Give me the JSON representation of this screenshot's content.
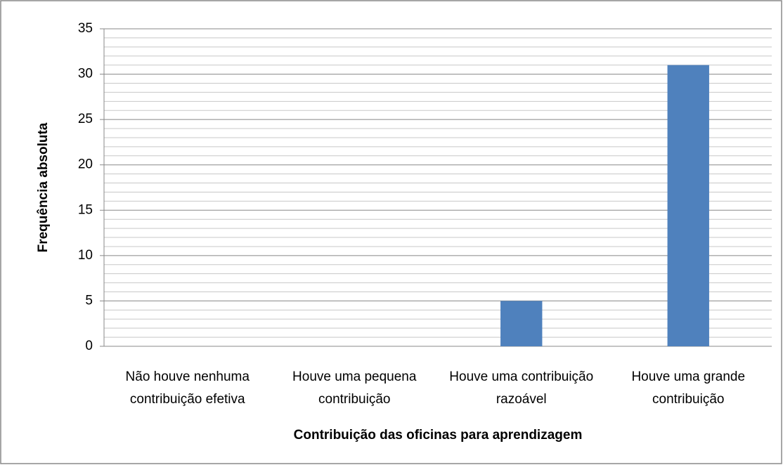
{
  "chart_data": {
    "type": "bar",
    "x_label": "Contribuição das oficinas para aprendizagem",
    "y_label": "Frequência absoluta",
    "categories": [
      "Não houve nenhuma contribuição efetiva",
      "Houve uma pequena contribuição",
      "Houve uma contribuição razoável",
      "Houve uma grande contribuição"
    ],
    "values": [
      0,
      0,
      5,
      31
    ],
    "color": "#4f81bd",
    "ylim": [
      0,
      35
    ],
    "yticks": [
      0,
      5,
      10,
      15,
      20,
      25,
      30,
      35
    ],
    "minor_yticks": [
      1,
      2,
      3,
      4,
      6,
      7,
      8,
      9,
      11,
      12,
      13,
      14,
      16,
      17,
      18,
      19,
      21,
      22,
      23,
      24,
      26,
      27,
      28,
      29,
      31,
      32,
      33,
      34
    ],
    "grid": true
  }
}
